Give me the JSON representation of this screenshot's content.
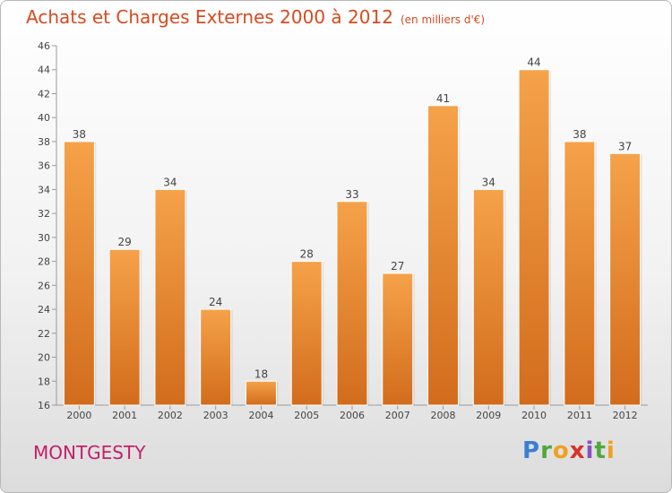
{
  "header": {
    "title": "Achats et Charges Externes 2000 à 2012",
    "subtitle": "(en milliers d'€)"
  },
  "footer": {
    "place": "MONTGESTY",
    "logo_text": "Proxiti"
  },
  "colors": {
    "bar_top": "#f5a24a",
    "bar_bottom": "#d26c1c",
    "title": "#d84a1f",
    "place": "#c41e6a"
  },
  "chart_data": {
    "type": "bar",
    "categories": [
      "2000",
      "2001",
      "2002",
      "2003",
      "2004",
      "2005",
      "2006",
      "2007",
      "2008",
      "2009",
      "2010",
      "2011",
      "2012"
    ],
    "values": [
      38,
      29,
      34,
      24,
      18,
      28,
      33,
      27,
      41,
      34,
      44,
      38,
      37
    ],
    "title": "Achats et Charges Externes 2000 à 2012",
    "xlabel": "",
    "ylabel": "",
    "ylim": [
      16,
      46
    ],
    "yticks": [
      16,
      18,
      20,
      22,
      24,
      26,
      28,
      30,
      32,
      34,
      36,
      38,
      40,
      42,
      44,
      46
    ],
    "grid": false,
    "data_labels": true
  }
}
